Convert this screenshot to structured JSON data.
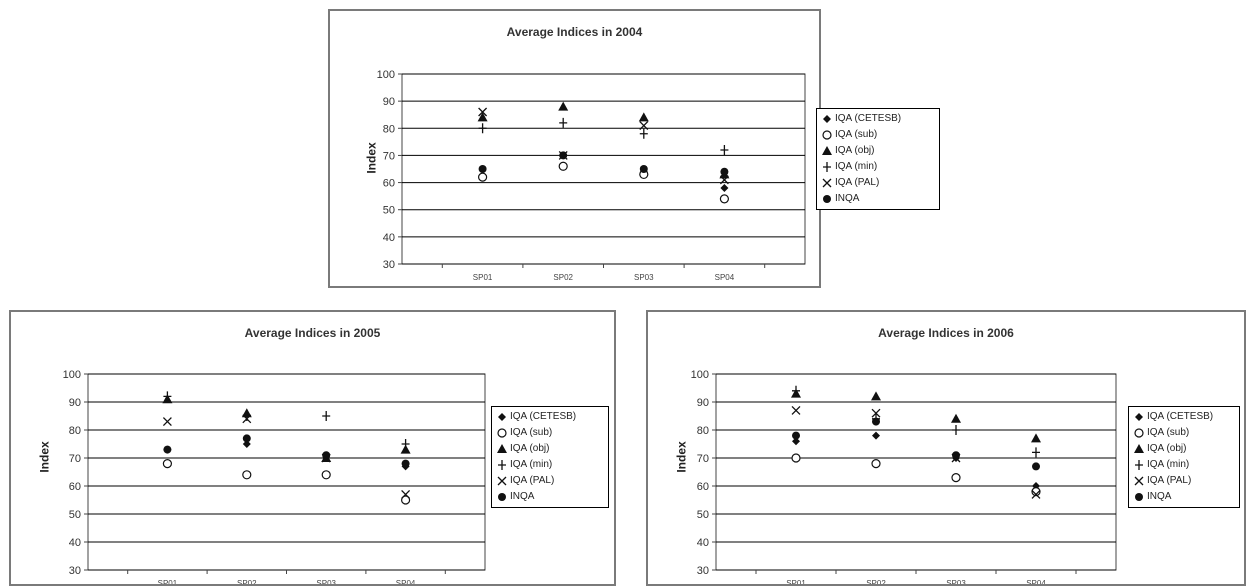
{
  "colors": {
    "marker": "#111111",
    "grid": "#000000",
    "axis": "#444444",
    "frame": "#7a7a7a"
  },
  "chart_data": [
    {
      "type": "scatter",
      "title": "Average Indices in 2004",
      "ylabel": "Index",
      "xlabel": "",
      "categories": [
        "SP01",
        "SP02",
        "SP03",
        "SP04"
      ],
      "ylim": [
        30,
        100
      ],
      "yticks": [
        30,
        40,
        50,
        60,
        70,
        80,
        90,
        100
      ],
      "grid": true,
      "legend_position": "right",
      "series": [
        {
          "name": "IQA (CETESB)",
          "marker": "diamond",
          "values": [
            62,
            70,
            64,
            58
          ]
        },
        {
          "name": "IQA (sub)",
          "marker": "circle-open",
          "values": [
            62,
            66,
            63,
            54
          ]
        },
        {
          "name": "IQA (obj)",
          "marker": "triangle",
          "values": [
            84,
            88,
            84,
            63
          ]
        },
        {
          "name": "IQA (min)",
          "marker": "plus",
          "values": [
            80,
            82,
            78,
            72
          ]
        },
        {
          "name": "IQA (PAL)",
          "marker": "cross",
          "values": [
            86,
            70,
            81,
            61
          ]
        },
        {
          "name": "INQA",
          "marker": "circle-filled",
          "values": [
            65,
            70,
            65,
            64
          ]
        }
      ]
    },
    {
      "type": "scatter",
      "title": "Average Indices in 2005",
      "ylabel": "Index",
      "xlabel": "",
      "categories": [
        "SP01",
        "SP02",
        "SP03",
        "SP04"
      ],
      "ylim": [
        30,
        100
      ],
      "yticks": [
        30,
        40,
        50,
        60,
        70,
        80,
        90,
        100
      ],
      "grid": true,
      "legend_position": "right",
      "series": [
        {
          "name": "IQA (CETESB)",
          "marker": "diamond",
          "values": [
            73,
            75,
            71,
            67
          ]
        },
        {
          "name": "IQA (sub)",
          "marker": "circle-open",
          "values": [
            68,
            64,
            64,
            55
          ]
        },
        {
          "name": "IQA (obj)",
          "marker": "triangle",
          "values": [
            91,
            86,
            70,
            73
          ]
        },
        {
          "name": "IQA (min)",
          "marker": "plus",
          "values": [
            92,
            85,
            85,
            75
          ]
        },
        {
          "name": "IQA (PAL)",
          "marker": "cross",
          "values": [
            83,
            84,
            70,
            57
          ]
        },
        {
          "name": "INQA",
          "marker": "circle-filled",
          "values": [
            73,
            77,
            71,
            68
          ]
        }
      ]
    },
    {
      "type": "scatter",
      "title": "Average Indices in 2006",
      "ylabel": "Index",
      "xlabel": "",
      "categories": [
        "SP01",
        "SP02",
        "SP03",
        "SP04"
      ],
      "ylim": [
        30,
        100
      ],
      "yticks": [
        30,
        40,
        50,
        60,
        70,
        80,
        90,
        100
      ],
      "grid": true,
      "legend_position": "right",
      "series": [
        {
          "name": "IQA (CETESB)",
          "marker": "diamond",
          "values": [
            76,
            78,
            70,
            60
          ]
        },
        {
          "name": "IQA (sub)",
          "marker": "circle-open",
          "values": [
            70,
            68,
            63,
            58
          ]
        },
        {
          "name": "IQA (obj)",
          "marker": "triangle",
          "values": [
            93,
            92,
            84,
            77
          ]
        },
        {
          "name": "IQA (min)",
          "marker": "plus",
          "values": [
            94,
            84,
            80,
            72
          ]
        },
        {
          "name": "IQA (PAL)",
          "marker": "cross",
          "values": [
            87,
            86,
            70,
            57
          ]
        },
        {
          "name": "INQA",
          "marker": "circle-filled",
          "values": [
            78,
            83,
            71,
            67
          ]
        }
      ]
    }
  ]
}
